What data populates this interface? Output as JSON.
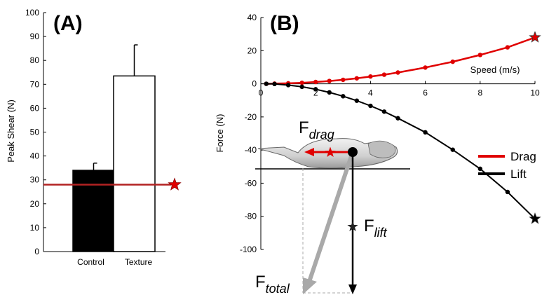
{
  "chart_data": [
    {
      "panel_label": "(A)",
      "type": "bar",
      "categories": [
        "Control",
        "Texture"
      ],
      "values": [
        34,
        73.5
      ],
      "errors": [
        3,
        13
      ],
      "bar_colors": [
        "#000000",
        "#ffffff"
      ],
      "ylabel": "Peak Shear (N)",
      "ylim": [
        0,
        100
      ],
      "yticks": [
        0,
        10,
        20,
        30,
        40,
        50,
        60,
        70,
        80,
        90,
        100
      ],
      "reference_line": {
        "value": 28,
        "color": "#b22222"
      }
    },
    {
      "panel_label": "(B)",
      "type": "line",
      "xlabel": "Speed (m/s)",
      "ylabel": "Force (N)",
      "xlim": [
        0,
        10
      ],
      "ylim": [
        -100,
        40
      ],
      "xticks": [
        0,
        2,
        4,
        6,
        8,
        10
      ],
      "yticks": [
        40,
        20,
        0,
        -20,
        -40,
        -60,
        -80,
        -100
      ],
      "legend_position": "right",
      "series": [
        {
          "name": "Drag",
          "color": "#e00000",
          "x": [
            0.2,
            0.5,
            1.0,
            1.5,
            2.0,
            2.5,
            3.0,
            3.5,
            4.0,
            4.5,
            5.0,
            6.0,
            7.0,
            8.0,
            9.0,
            10.0
          ],
          "y": [
            0,
            0.1,
            0.3,
            0.6,
            1.1,
            1.7,
            2.4,
            3.3,
            4.4,
            5.5,
            6.8,
            9.8,
            13.3,
            17.4,
            22.0,
            28.0
          ]
        },
        {
          "name": "Lift",
          "color": "#000000",
          "x": [
            0.2,
            0.5,
            1.0,
            1.5,
            2.0,
            2.5,
            3.0,
            3.5,
            4.0,
            4.5,
            5.0,
            6.0,
            7.0,
            8.0,
            9.0,
            10.0
          ],
          "y": [
            0,
            -0.1,
            -0.8,
            -1.8,
            -3.3,
            -5.2,
            -7.5,
            -10.2,
            -13.3,
            -16.8,
            -20.8,
            -29.3,
            -39.8,
            -51.3,
            -65.3,
            -81.5
          ]
        }
      ],
      "vector_labels": {
        "drag": {
          "main": "F",
          "sub": "drag"
        },
        "lift": {
          "main": "F",
          "sub": "lift"
        },
        "total": {
          "main": "F",
          "sub": "total"
        }
      }
    }
  ]
}
